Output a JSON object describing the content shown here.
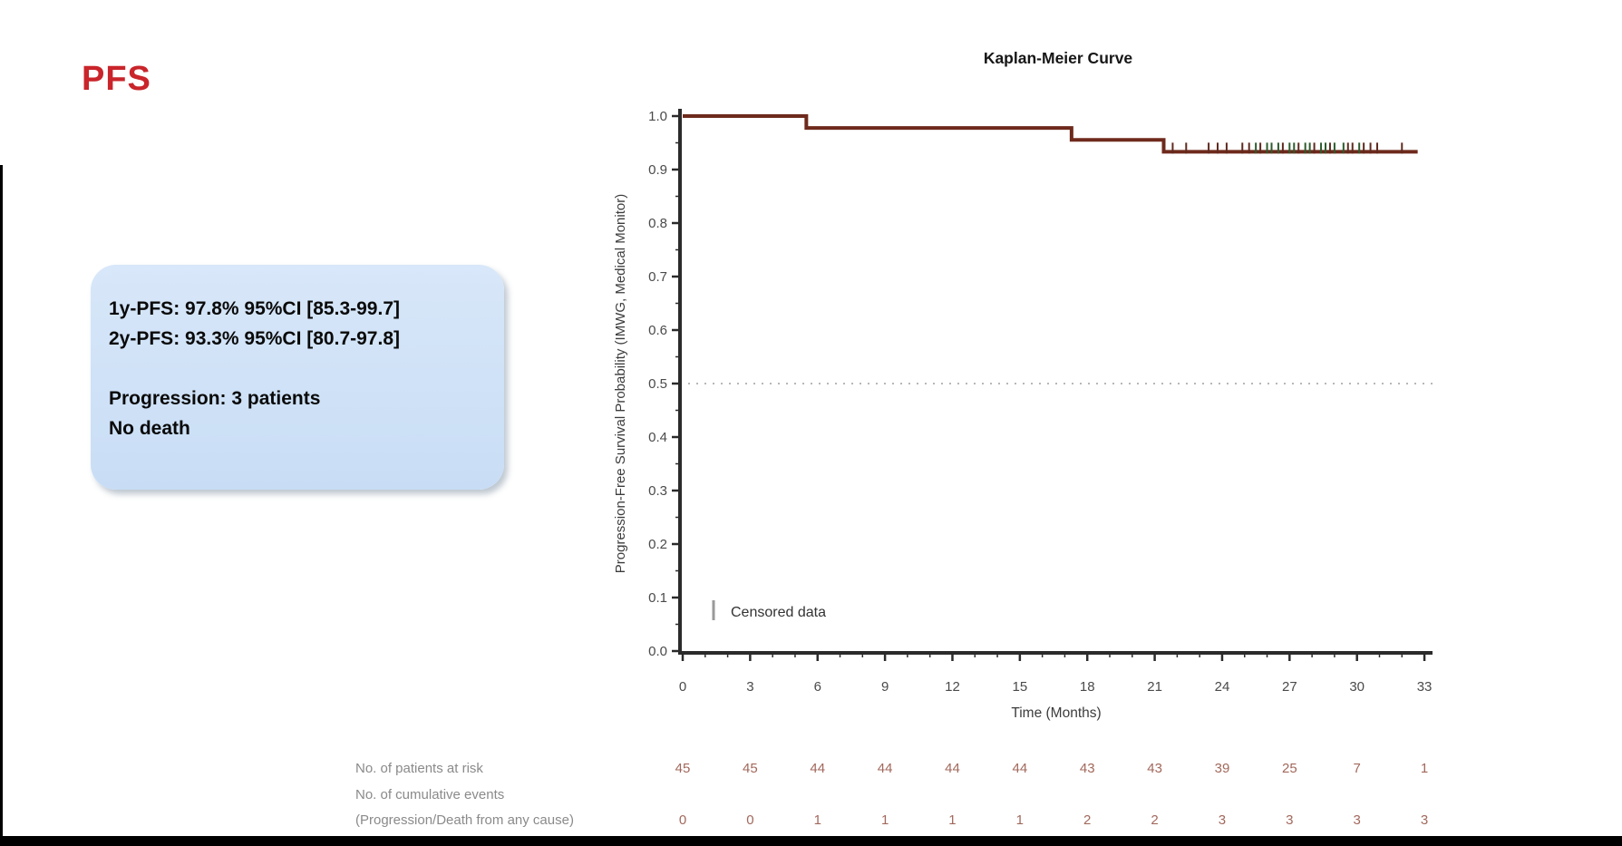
{
  "slide": {
    "title": "PFS",
    "accent_color": "#c9252b",
    "stats_box": {
      "bg_color": "#cfe2f6",
      "line1": "1y-PFS: 97.8% 95%CI [85.3-99.7]",
      "line2": "2y-PFS: 93.3% 95%CI [80.7-97.8]",
      "line3": "Progression: 3 patients",
      "line4": "No death"
    }
  },
  "chart_data": {
    "type": "line",
    "subtype": "kaplan-meier-step-curve",
    "title": "Kaplan-Meier Curve",
    "xlabel": "Time (Months)",
    "ylabel": "Progression-Free Survival Probability (IMWG, Medical Monitor)",
    "xlim": [
      0,
      33
    ],
    "ylim": [
      0.0,
      1.0
    ],
    "x_ticks": [
      0,
      3,
      6,
      9,
      12,
      15,
      18,
      21,
      24,
      27,
      30,
      33
    ],
    "y_ticks": [
      0.0,
      0.1,
      0.2,
      0.3,
      0.4,
      0.5,
      0.6,
      0.7,
      0.8,
      0.9,
      1.0
    ],
    "grid": false,
    "reference_line_y": 0.5,
    "curve_color": "#6e2a1c",
    "steps": [
      {
        "t": 0.0,
        "s": 1.0
      },
      {
        "t": 5.5,
        "s": 0.9778
      },
      {
        "t": 17.3,
        "s": 0.9556
      },
      {
        "t": 21.4,
        "s": 0.9333
      }
    ],
    "end_time": 32.7,
    "censor_colors": {
      "maroon": "#5f2a1f",
      "green": "#2e5b2e"
    },
    "censor_ticks": [
      {
        "t": 21.8,
        "c": "maroon"
      },
      {
        "t": 22.4,
        "c": "maroon"
      },
      {
        "t": 23.4,
        "c": "maroon"
      },
      {
        "t": 23.8,
        "c": "maroon"
      },
      {
        "t": 24.2,
        "c": "maroon"
      },
      {
        "t": 24.9,
        "c": "maroon"
      },
      {
        "t": 25.2,
        "c": "maroon"
      },
      {
        "t": 25.5,
        "c": "green"
      },
      {
        "t": 25.7,
        "c": "maroon"
      },
      {
        "t": 26.0,
        "c": "green"
      },
      {
        "t": 26.2,
        "c": "green"
      },
      {
        "t": 26.5,
        "c": "green"
      },
      {
        "t": 26.7,
        "c": "maroon"
      },
      {
        "t": 27.0,
        "c": "green"
      },
      {
        "t": 27.2,
        "c": "green"
      },
      {
        "t": 27.4,
        "c": "maroon"
      },
      {
        "t": 27.7,
        "c": "green"
      },
      {
        "t": 27.9,
        "c": "green"
      },
      {
        "t": 28.1,
        "c": "maroon"
      },
      {
        "t": 28.4,
        "c": "green"
      },
      {
        "t": 28.6,
        "c": "green"
      },
      {
        "t": 28.8,
        "c": "maroon"
      },
      {
        "t": 29.0,
        "c": "green"
      },
      {
        "t": 29.4,
        "c": "green"
      },
      {
        "t": 29.6,
        "c": "maroon"
      },
      {
        "t": 29.8,
        "c": "maroon"
      },
      {
        "t": 30.1,
        "c": "green"
      },
      {
        "t": 30.3,
        "c": "maroon"
      },
      {
        "t": 30.6,
        "c": "maroon"
      },
      {
        "t": 30.9,
        "c": "maroon"
      },
      {
        "t": 32.0,
        "c": "maroon"
      }
    ],
    "legend": {
      "marker": "|",
      "label": "Censored data"
    },
    "at_risk_table": {
      "rows": [
        {
          "label_lines": [
            "No. of patients at risk"
          ],
          "values": [
            45,
            45,
            44,
            44,
            44,
            44,
            43,
            43,
            39,
            25,
            7,
            1
          ]
        },
        {
          "label_lines": [
            "No. of cumulative events",
            "(Progression/Death from any cause)"
          ],
          "values": [
            0,
            0,
            1,
            1,
            1,
            1,
            2,
            2,
            3,
            3,
            3,
            3
          ]
        }
      ]
    }
  }
}
